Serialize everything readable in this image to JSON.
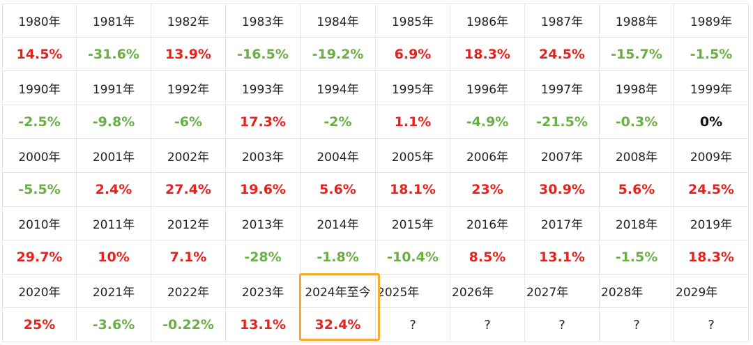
{
  "colors": {
    "up": "#e8211c",
    "down": "#6aae45",
    "flat": "#111111",
    "highlight": "#f5ac2b",
    "grid": "#e6e6e6"
  },
  "rows": [
    {
      "years": [
        "1980年",
        "1981年",
        "1982年",
        "1983年",
        "1984年",
        "1985年",
        "1986年",
        "1987年",
        "1988年",
        "1989年"
      ],
      "values": [
        "14.5%",
        "-31.6%",
        "13.9%",
        "-16.5%",
        "-19.2%",
        "6.9%",
        "18.3%",
        "24.5%",
        "-15.7%",
        "-1.5%"
      ],
      "trends": [
        "up",
        "down",
        "up",
        "down",
        "down",
        "up",
        "up",
        "up",
        "down",
        "down"
      ]
    },
    {
      "years": [
        "1990年",
        "1991年",
        "1992年",
        "1993年",
        "1994年",
        "1995年",
        "1996年",
        "1997年",
        "1998年",
        "1999年"
      ],
      "values": [
        "-2.5%",
        "-9.8%",
        "-6%",
        "17.3%",
        "-2%",
        "1.1%",
        "-4.9%",
        "-21.5%",
        "-0.3%",
        "0%"
      ],
      "trends": [
        "down",
        "down",
        "down",
        "up",
        "down",
        "up",
        "down",
        "down",
        "down",
        "flat"
      ]
    },
    {
      "years": [
        "2000年",
        "2001年",
        "2002年",
        "2003年",
        "2004年",
        "2005年",
        "2006年",
        "2007年",
        "2008年",
        "2009年"
      ],
      "values": [
        "-5.5%",
        "2.4%",
        "27.4%",
        "19.6%",
        "5.6%",
        "18.1%",
        "23%",
        "30.9%",
        "5.6%",
        "24.5%"
      ],
      "trends": [
        "down",
        "up",
        "up",
        "up",
        "up",
        "up",
        "up",
        "up",
        "up",
        "up"
      ]
    },
    {
      "years": [
        "2010年",
        "2011年",
        "2012年",
        "2013年",
        "2014年",
        "2015年",
        "2016年",
        "2017年",
        "2018年",
        "2019年"
      ],
      "values": [
        "29.7%",
        "10%",
        "7.1%",
        "-28%",
        "-1.8%",
        "-10.4%",
        "8.5%",
        "13.1%",
        "-1.5%",
        "18.3%"
      ],
      "trends": [
        "up",
        "up",
        "up",
        "down",
        "down",
        "down",
        "up",
        "up",
        "down",
        "up"
      ]
    },
    {
      "years": [
        "2020年",
        "2021年",
        "2022年",
        "2023年",
        "2024年至今",
        "2025年",
        "2026年",
        "2027年",
        "2028年",
        "2029年"
      ],
      "values": [
        "25%",
        "-3.6%",
        "-0.22%",
        "13.1%",
        "32.4%",
        "?",
        "?",
        "?",
        "?",
        "?"
      ],
      "trends": [
        "up",
        "down",
        "down",
        "up",
        "up",
        "unknown",
        "unknown",
        "unknown",
        "unknown",
        "unknown"
      ]
    }
  ]
}
